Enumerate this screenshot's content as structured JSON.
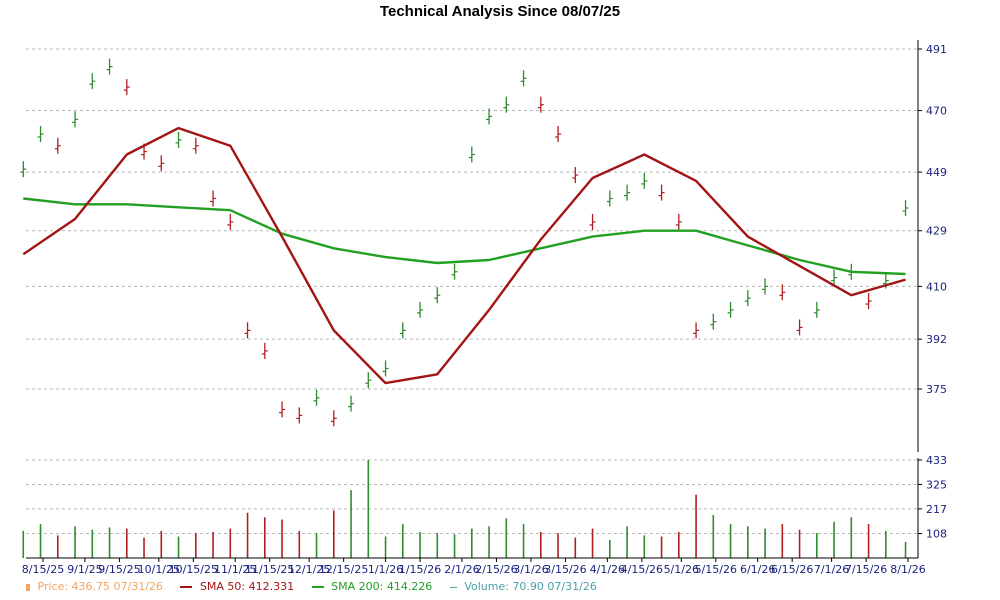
{
  "chart_data": {
    "type": "line",
    "title": "Technical Analysis Since 08/07/25",
    "xlabel": "",
    "ylabel": "",
    "x_ticks": [
      "8/15/25",
      "9/1/25",
      "9/15/25",
      "10/1/25",
      "10/15/25",
      "11/1/25",
      "11/15/25",
      "12/1/25",
      "12/15/25",
      "1/1/26",
      "1/15/26",
      "2/1/26",
      "2/15/26",
      "3/1/26",
      "3/15/26",
      "4/1/26",
      "4/15/26",
      "5/1/26",
      "5/15/26",
      "6/1/26",
      "6/15/26",
      "7/1/26",
      "7/15/26",
      "8/1/26"
    ],
    "price_y_ticks": [
      491,
      470,
      449,
      429,
      410,
      392,
      375
    ],
    "price_ylim": [
      356,
      494
    ],
    "volume_y_ticks": [
      433,
      325,
      217,
      108
    ],
    "volume_ylim": [
      0,
      433
    ],
    "grid": true,
    "legend_position": "bottom",
    "series": [
      {
        "name": "Price",
        "type": "ohlc",
        "x": [
          "8/7/25",
          "8/14/25",
          "8/21/25",
          "8/28/25",
          "9/4/25",
          "9/11/25",
          "9/18/25",
          "9/25/25",
          "10/2/25",
          "10/9/25",
          "10/16/25",
          "10/23/25",
          "10/30/25",
          "11/6/25",
          "11/13/25",
          "11/20/25",
          "11/27/25",
          "12/4/25",
          "12/11/25",
          "12/18/25",
          "12/25/25",
          "1/1/26",
          "1/8/26",
          "1/15/26",
          "1/22/26",
          "1/29/26",
          "2/5/26",
          "2/12/26",
          "2/19/26",
          "2/26/26",
          "3/5/26",
          "3/12/26",
          "3/19/26",
          "3/26/26",
          "4/2/26",
          "4/9/26",
          "4/16/26",
          "4/23/26",
          "4/30/26",
          "5/7/26",
          "5/14/26",
          "5/21/26",
          "5/28/26",
          "6/4/26",
          "6/11/26",
          "6/18/26",
          "6/25/26",
          "7/2/26",
          "7/9/26",
          "7/16/26",
          "7/23/26",
          "7/31/26"
        ],
        "values": [
          450,
          462,
          458,
          467,
          480,
          485,
          478,
          456,
          452,
          460,
          458,
          440,
          432,
          395,
          388,
          368,
          366,
          372,
          365,
          370,
          378,
          382,
          395,
          402,
          407,
          415,
          455,
          468,
          472,
          481,
          472,
          462,
          448,
          432,
          440,
          442,
          446,
          442,
          432,
          395,
          398,
          402,
          406,
          410,
          408,
          396,
          402,
          413,
          415,
          405,
          412,
          436.75
        ]
      },
      {
        "name": "SMA 50",
        "x": [
          "8/7/25",
          "8/28/25",
          "9/18/25",
          "10/9/25",
          "10/30/25",
          "11/20/25",
          "12/11/25",
          "1/1/26",
          "1/22/26",
          "2/12/26",
          "3/5/26",
          "3/26/26",
          "4/16/26",
          "5/7/26",
          "5/28/26",
          "6/18/26",
          "7/9/26",
          "7/31/26"
        ],
        "values": [
          421,
          433,
          455,
          464,
          458,
          427,
          395,
          377,
          380,
          402,
          426,
          447,
          455,
          446,
          427,
          417,
          407,
          412.331
        ]
      },
      {
        "name": "SMA 200",
        "x": [
          "8/7/25",
          "8/28/25",
          "9/18/25",
          "10/9/25",
          "10/30/25",
          "11/20/25",
          "12/11/25",
          "1/1/26",
          "1/22/26",
          "2/12/26",
          "3/5/26",
          "3/26/26",
          "4/16/26",
          "5/7/26",
          "5/28/26",
          "6/18/26",
          "7/9/26",
          "7/31/26"
        ],
        "values": [
          440,
          438,
          438,
          437,
          436,
          428,
          423,
          420,
          418,
          419,
          423,
          427,
          429,
          429,
          424,
          419,
          415,
          414.226
        ]
      },
      {
        "name": "Volume",
        "type": "bar",
        "x": [
          "8/7/25",
          "8/14/25",
          "8/21/25",
          "8/28/25",
          "9/4/25",
          "9/11/25",
          "9/18/25",
          "9/25/25",
          "10/2/25",
          "10/9/25",
          "10/16/25",
          "10/23/25",
          "10/30/25",
          "11/6/25",
          "11/13/25",
          "11/20/25",
          "11/27/25",
          "12/4/25",
          "12/11/25",
          "12/18/25",
          "12/25/25",
          "1/1/26",
          "1/8/26",
          "1/15/26",
          "1/22/26",
          "1/29/26",
          "2/5/26",
          "2/12/26",
          "2/19/26",
          "2/26/26",
          "3/5/26",
          "3/12/26",
          "3/19/26",
          "3/26/26",
          "4/2/26",
          "4/9/26",
          "4/16/26",
          "4/23/26",
          "4/30/26",
          "5/7/26",
          "5/14/26",
          "5/21/26",
          "5/28/26",
          "6/4/26",
          "6/11/26",
          "6/18/26",
          "6/25/26",
          "7/2/26",
          "7/9/26",
          "7/16/26",
          "7/23/26",
          "7/31/26"
        ],
        "values": [
          120,
          150,
          100,
          140,
          125,
          135,
          130,
          90,
          120,
          95,
          110,
          115,
          130,
          200,
          180,
          170,
          120,
          110,
          210,
          300,
          433,
          95,
          150,
          115,
          110,
          105,
          130,
          140,
          175,
          150,
          115,
          110,
          90,
          130,
          80,
          140,
          100,
          95,
          115,
          280,
          190,
          150,
          140,
          130,
          150,
          125,
          110,
          160,
          180,
          150,
          120,
          70.9
        ]
      }
    ]
  },
  "legend": {
    "price": {
      "label": "Price: 436.75  07/31/26",
      "color": "#f4a460"
    },
    "sma50": {
      "label": "SMA 50: 412.331",
      "color": "#a31515"
    },
    "sma200": {
      "label": "SMA 200: 414.226",
      "color": "#22a022"
    },
    "volume": {
      "label": "Volume: 70.90  07/31/26",
      "color": "#4aa0a8"
    }
  },
  "colors": {
    "up": "#2e8b2e",
    "down": "#b02020",
    "sma50": "#a31515",
    "sma200": "#22a022",
    "grid": "#b8b8b8",
    "tick_text": "#1a237e",
    "axis": "#000000"
  }
}
